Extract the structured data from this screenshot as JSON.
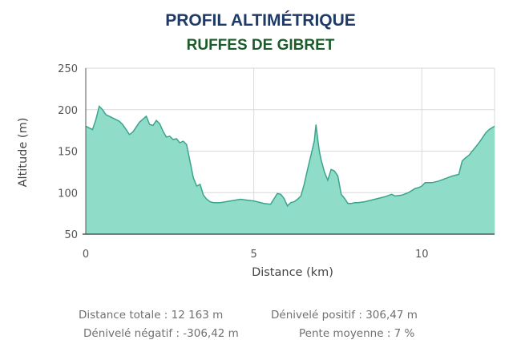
{
  "header": {
    "title": "PROFIL ALTIMÉTRIQUE",
    "subtitle": "RUFFES DE GIBRET"
  },
  "stats": {
    "distance_totale": "Distance totale : 12 163 m",
    "denivele_positif": "Dénivelé positif : 306,47 m",
    "denivele_negatif": "Dénivelé négatif : -306,42 m",
    "pente_moyenne": "Pente moyenne : 7 %"
  },
  "colors": {
    "fill": "#8fdcc9",
    "line": "#3aa58c",
    "grid": "#d9d9d9",
    "axis": "#555555",
    "title": "#1f3a66",
    "subtitle": "#1a5c2a"
  },
  "chart_data": {
    "type": "area",
    "xlabel": "Distance (km)",
    "ylabel": "Altitude (m)",
    "xlim": [
      0,
      12.163
    ],
    "ylim": [
      50,
      250
    ],
    "xticks": [
      0,
      5,
      10
    ],
    "yticks": [
      50,
      100,
      150,
      200,
      250
    ],
    "grid": true,
    "series": [
      {
        "x": [
          0,
          0.2,
          0.3,
          0.4,
          0.5,
          0.6,
          0.8,
          1.0,
          1.1,
          1.2,
          1.3,
          1.4,
          1.6,
          1.8,
          1.9,
          2.0,
          2.1,
          2.2,
          2.3,
          2.4,
          2.5,
          2.6,
          2.7,
          2.8,
          2.9,
          3.0,
          3.1,
          3.2,
          3.3,
          3.4,
          3.5,
          3.6,
          3.7,
          3.8,
          4.0,
          4.3,
          4.6,
          4.8,
          5.0,
          5.3,
          5.5,
          5.7,
          5.8,
          5.9,
          6.0,
          6.05,
          6.1,
          6.2,
          6.3,
          6.4,
          6.5,
          6.6,
          6.7,
          6.8,
          6.85,
          6.9,
          6.95,
          7.0,
          7.1,
          7.2,
          7.3,
          7.4,
          7.5,
          7.6,
          7.7,
          7.8,
          7.9,
          8.0,
          8.1,
          8.3,
          8.6,
          8.9,
          9.1,
          9.2,
          9.4,
          9.6,
          9.8,
          9.9,
          10.0,
          10.1,
          10.3,
          10.5,
          10.7,
          10.9,
          11.0,
          11.1,
          11.2,
          11.3,
          11.4,
          11.5,
          11.6,
          11.7,
          11.8,
          11.9,
          12.0,
          12.163
        ],
        "y": [
          180,
          176,
          188,
          204,
          200,
          194,
          190,
          186,
          182,
          176,
          170,
          173,
          185,
          192,
          182,
          181,
          187,
          183,
          174,
          167,
          168,
          164,
          165,
          160,
          162,
          158,
          138,
          118,
          108,
          110,
          97,
          92,
          89,
          88,
          88,
          90,
          92,
          91,
          90,
          87,
          86,
          99,
          98,
          93,
          84,
          86,
          88,
          89,
          92,
          96,
          110,
          128,
          145,
          162,
          182,
          165,
          150,
          140,
          125,
          115,
          128,
          126,
          120,
          98,
          93,
          87,
          87,
          88,
          88,
          89,
          92,
          95,
          98,
          96,
          97,
          100,
          105,
          106,
          108,
          112,
          112,
          114,
          117,
          120,
          121,
          122,
          138,
          142,
          145,
          150,
          155,
          160,
          166,
          172,
          176,
          180
        ]
      }
    ]
  }
}
